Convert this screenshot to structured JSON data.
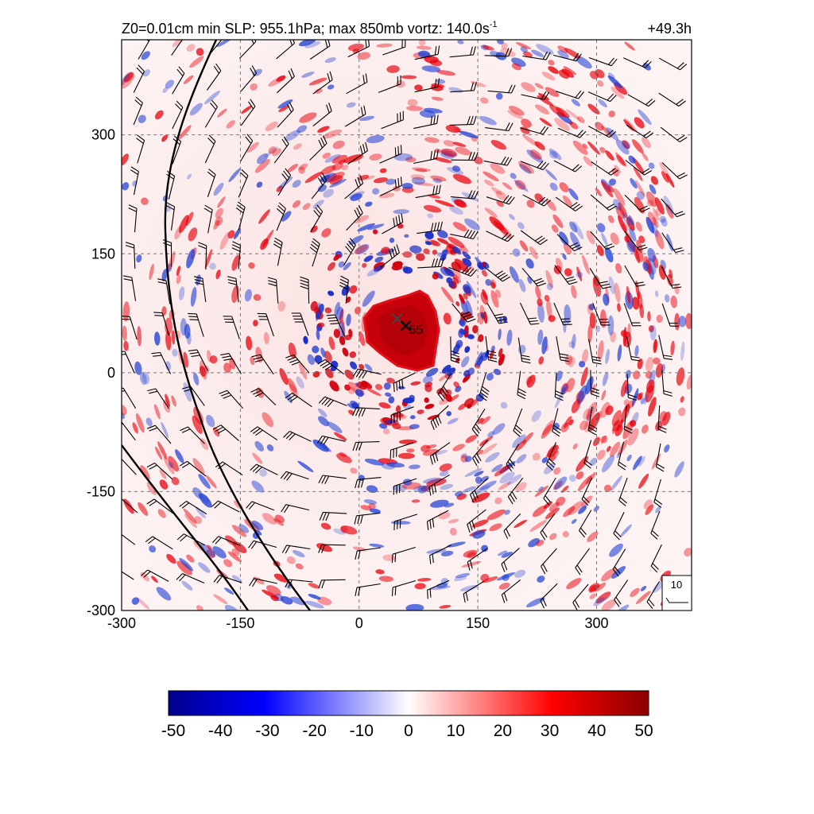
{
  "chart_data": {
    "type": "heatmap",
    "title": "Z0=0.01cm  min SLP: 955.1hPa; max 850mb vortz: 140.0s",
    "title_superscript": "-1",
    "time_label": "+49.3h",
    "x_ticks": [
      -300,
      -150,
      0,
      150,
      300
    ],
    "y_ticks": [
      -300,
      -150,
      0,
      150,
      300
    ],
    "xlim": [
      -300,
      420
    ],
    "ylim": [
      -300,
      420
    ],
    "grid": true,
    "grid_style": "dashed",
    "storm_center_marker": {
      "x": 59,
      "y": 59,
      "label": "55"
    },
    "secondary_marker": {
      "x": 48,
      "y": 68
    },
    "reference_vector_label": "10",
    "colorbar": {
      "ticks": [
        -50,
        -40,
        -30,
        -20,
        -10,
        0,
        10,
        20,
        30,
        40,
        50
      ],
      "min": -50,
      "max": 50,
      "colors": [
        "#00008b",
        "#0000ff",
        "#ffffff",
        "#ff0000",
        "#8b0000"
      ]
    },
    "colors": {
      "positive": "#e8000b",
      "negative": "#1f3fd6",
      "core": "#c8000a",
      "background": "#ffffff"
    }
  }
}
